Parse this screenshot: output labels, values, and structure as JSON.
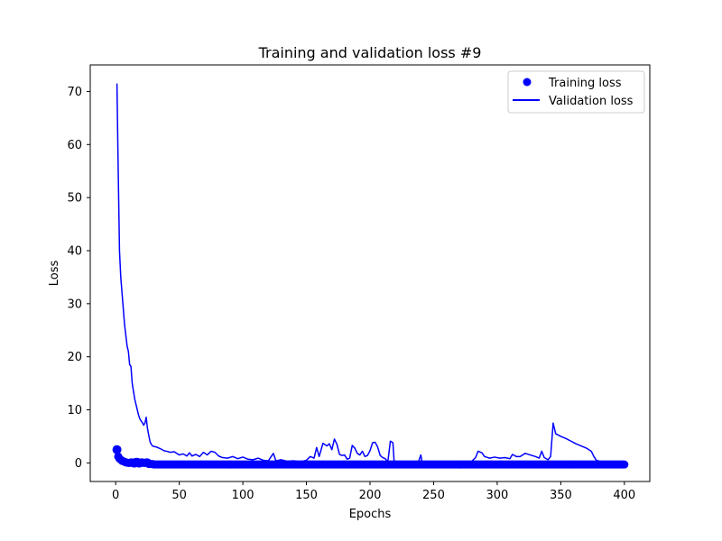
{
  "chart_data": {
    "type": "line",
    "title": "Training and validation loss #9",
    "xlabel": "Epochs",
    "ylabel": "Loss",
    "xlim": [
      -20,
      420
    ],
    "ylim": [
      -3.5,
      75
    ],
    "xticks": [
      0,
      50,
      100,
      150,
      200,
      250,
      300,
      350,
      400
    ],
    "yticks": [
      0,
      10,
      20,
      30,
      40,
      50,
      60,
      70
    ],
    "grid": false,
    "legend_position": "upper-right",
    "colors": {
      "series": "#0000ff",
      "axes": "#000000",
      "background": "#ffffff"
    },
    "series": [
      {
        "name": "Training loss",
        "style": "markers",
        "x_start": 1,
        "x_end": 400,
        "baseline": -0.3,
        "initial_values": [
          [
            1,
            2.5
          ],
          [
            2,
            1.2
          ],
          [
            3,
            0.8
          ],
          [
            4,
            0.6
          ],
          [
            5,
            0.4
          ],
          [
            6,
            0.3
          ],
          [
            7,
            0.2
          ],
          [
            8,
            0.1
          ],
          [
            9,
            0.05
          ],
          [
            10,
            0.0
          ],
          [
            12,
            0.1
          ],
          [
            14,
            -0.1
          ],
          [
            16,
            0.2
          ],
          [
            18,
            -0.1
          ],
          [
            20,
            0.1
          ],
          [
            22,
            0.0
          ],
          [
            24,
            0.1
          ],
          [
            26,
            -0.2
          ],
          [
            28,
            -0.2
          ],
          [
            30,
            -0.3
          ]
        ]
      },
      {
        "name": "Validation loss",
        "style": "line",
        "points": [
          [
            1,
            71.5
          ],
          [
            2,
            55
          ],
          [
            3,
            40
          ],
          [
            4,
            35
          ],
          [
            5,
            32
          ],
          [
            6,
            29
          ],
          [
            7,
            26
          ],
          [
            8,
            24
          ],
          [
            9,
            22
          ],
          [
            10,
            21
          ],
          [
            11,
            18.5
          ],
          [
            12,
            18.2
          ],
          [
            13,
            15
          ],
          [
            14,
            13.5
          ],
          [
            15,
            12
          ],
          [
            16,
            11
          ],
          [
            17,
            10
          ],
          [
            18,
            9
          ],
          [
            19,
            8.3
          ],
          [
            20,
            7.9
          ],
          [
            21,
            7.6
          ],
          [
            22,
            7.1
          ],
          [
            23,
            7.5
          ],
          [
            24,
            8.6
          ],
          [
            25,
            6.5
          ],
          [
            26,
            5.2
          ],
          [
            27,
            4
          ],
          [
            28,
            3.5
          ],
          [
            29,
            3.2
          ],
          [
            30,
            3.1
          ],
          [
            32,
            3.0
          ],
          [
            35,
            2.7
          ],
          [
            38,
            2.3
          ],
          [
            40,
            2.2
          ],
          [
            43,
            2.0
          ],
          [
            46,
            2.1
          ],
          [
            50,
            1.5
          ],
          [
            53,
            1.7
          ],
          [
            56,
            1.3
          ],
          [
            58,
            1.9
          ],
          [
            60,
            1.3
          ],
          [
            63,
            1.6
          ],
          [
            66,
            1.2
          ],
          [
            69,
            2.0
          ],
          [
            72,
            1.5
          ],
          [
            75,
            2.2
          ],
          [
            78,
            2.0
          ],
          [
            81,
            1.3
          ],
          [
            84,
            1.0
          ],
          [
            88,
            0.9
          ],
          [
            92,
            1.2
          ],
          [
            96,
            0.8
          ],
          [
            100,
            1.1
          ],
          [
            104,
            0.7
          ],
          [
            108,
            0.6
          ],
          [
            112,
            0.9
          ],
          [
            116,
            0.5
          ],
          [
            120,
            0.4
          ],
          [
            124,
            1.8
          ],
          [
            126,
            0.4
          ],
          [
            130,
            0.6
          ],
          [
            135,
            0.3
          ],
          [
            140,
            0.4
          ],
          [
            145,
            0.2
          ],
          [
            150,
            0.5
          ],
          [
            153,
            1.2
          ],
          [
            156,
            0.9
          ],
          [
            158,
            2.9
          ],
          [
            160,
            1.2
          ],
          [
            163,
            3.7
          ],
          [
            166,
            3.2
          ],
          [
            168,
            3.6
          ],
          [
            170,
            2.5
          ],
          [
            172,
            4.5
          ],
          [
            174,
            3.5
          ],
          [
            176,
            1.6
          ],
          [
            178,
            1.4
          ],
          [
            180,
            1.5
          ],
          [
            182,
            0.7
          ],
          [
            184,
            0.9
          ],
          [
            186,
            3.3
          ],
          [
            188,
            2.8
          ],
          [
            190,
            1.8
          ],
          [
            192,
            1.5
          ],
          [
            194,
            2.2
          ],
          [
            196,
            1.2
          ],
          [
            198,
            1.4
          ],
          [
            200,
            2.3
          ],
          [
            202,
            3.8
          ],
          [
            204,
            3.9
          ],
          [
            206,
            3.0
          ],
          [
            208,
            1.4
          ],
          [
            210,
            1.0
          ],
          [
            212,
            0.8
          ],
          [
            214,
            0.2
          ],
          [
            216,
            4.1
          ],
          [
            218,
            3.8
          ],
          [
            219,
            0.1
          ],
          [
            222,
            0.0
          ],
          [
            230,
            -0.2
          ],
          [
            238,
            0.2
          ],
          [
            240,
            1.5
          ],
          [
            241,
            -0.1
          ],
          [
            250,
            0.0
          ],
          [
            260,
            -0.1
          ],
          [
            270,
            0.1
          ],
          [
            280,
            0.3
          ],
          [
            283,
            1.0
          ],
          [
            285,
            2.2
          ],
          [
            288,
            1.9
          ],
          [
            290,
            1.2
          ],
          [
            294,
            0.9
          ],
          [
            298,
            1.1
          ],
          [
            302,
            0.9
          ],
          [
            306,
            1.0
          ],
          [
            310,
            0.8
          ],
          [
            312,
            1.6
          ],
          [
            315,
            1.2
          ],
          [
            318,
            1.2
          ],
          [
            322,
            1.8
          ],
          [
            326,
            1.5
          ],
          [
            330,
            1.2
          ],
          [
            333,
            0.9
          ],
          [
            335,
            2.2
          ],
          [
            337,
            1.0
          ],
          [
            340,
            0.6
          ],
          [
            342,
            1.2
          ],
          [
            344,
            7.5
          ],
          [
            346,
            5.5
          ],
          [
            350,
            5.0
          ],
          [
            354,
            4.6
          ],
          [
            358,
            4.1
          ],
          [
            362,
            3.6
          ],
          [
            366,
            3.2
          ],
          [
            370,
            2.8
          ],
          [
            374,
            2.2
          ],
          [
            376,
            1.2
          ],
          [
            378,
            0.5
          ],
          [
            382,
            0.2
          ],
          [
            386,
            0.1
          ],
          [
            390,
            0.1
          ],
          [
            395,
            0.0
          ],
          [
            400,
            0.0
          ]
        ]
      }
    ]
  }
}
